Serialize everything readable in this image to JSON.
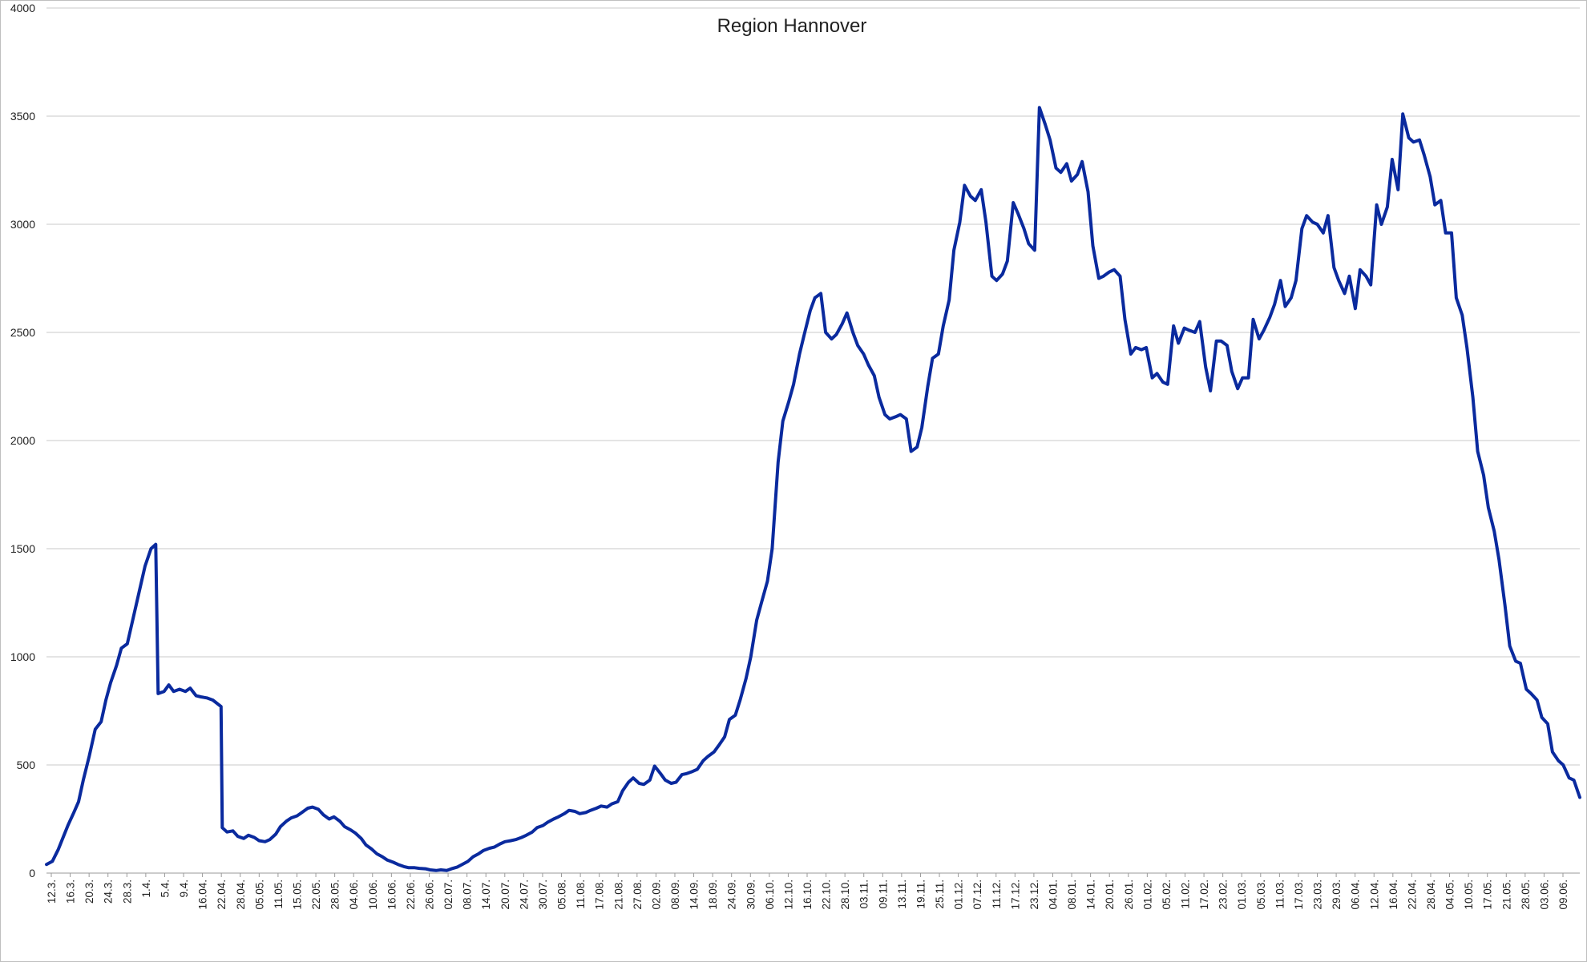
{
  "chart_data": {
    "type": "line",
    "title": "Region Hannover",
    "xlabel": "",
    "ylabel": "",
    "ylim": [
      0,
      4000
    ],
    "yticks": [
      0,
      500,
      1000,
      1500,
      2000,
      2500,
      3000,
      3500,
      4000
    ],
    "grid": true,
    "legend": "none",
    "color": "#0a2a9e",
    "categories": [
      "12.3.",
      "16.3.",
      "20.3.",
      "24.3.",
      "28.3.",
      "1.4.",
      "5.4.",
      "9.4.",
      "16.04.",
      "22.04.",
      "28.04.",
      "05.05.",
      "11.05.",
      "15.05.",
      "22.05.",
      "28.05.",
      "04.06.",
      "10.06.",
      "16.06.",
      "22.06.",
      "26.06.",
      "02.07.",
      "08.07.",
      "14.07.",
      "20.07.",
      "24.07.",
      "30.07.",
      "05.08.",
      "11.08.",
      "17.08.",
      "21.08.",
      "27.08.",
      "02.09.",
      "08.09.",
      "14.09.",
      "18.09.",
      "24.09.",
      "30.09.",
      "06.10.",
      "12.10.",
      "16.10.",
      "22.10.",
      "28.10.",
      "03.11.",
      "09.11.",
      "13.11.",
      "19.11.",
      "25.11.",
      "01.12.",
      "07.12.",
      "11.12.",
      "17.12.",
      "23.12.",
      "04.01.",
      "08.01.",
      "14.01.",
      "20.01.",
      "26.01.",
      "01.02.",
      "05.02.",
      "11.02.",
      "17.02.",
      "23.02.",
      "01.03.",
      "05.03.",
      "11.03.",
      "17.03.",
      "23.03.",
      "29.03.",
      "06.04.",
      "12.04.",
      "16.04.",
      "22.04.",
      "28.04.",
      "04.05.",
      "10.05.",
      "17.05.",
      "21.05.",
      "28.05.",
      "03.06.",
      "09.06."
    ],
    "series": [
      {
        "values": [
          [
            0,
            40
          ],
          [
            5,
            55
          ],
          [
            10,
            110
          ],
          [
            14,
            165
          ],
          [
            18,
            220
          ],
          [
            23,
            280
          ],
          [
            27,
            330
          ],
          [
            31,
            430
          ],
          [
            36,
            540
          ],
          [
            41,
            665
          ],
          [
            46,
            700
          ],
          [
            50,
            800
          ],
          [
            54,
            880
          ],
          [
            59,
            960
          ],
          [
            63,
            1040
          ],
          [
            68,
            1060
          ],
          [
            73,
            1180
          ],
          [
            78,
            1300
          ],
          [
            83,
            1420
          ],
          [
            88,
            1500
          ],
          [
            92,
            1520
          ],
          [
            94,
            830
          ],
          [
            99,
            840
          ],
          [
            103,
            870
          ],
          [
            107,
            840
          ],
          [
            112,
            850
          ],
          [
            117,
            840
          ],
          [
            121,
            855
          ],
          [
            126,
            820
          ],
          [
            130,
            815
          ],
          [
            135,
            810
          ],
          [
            140,
            800
          ],
          [
            147,
            770
          ],
          [
            148,
            210
          ],
          [
            152,
            190
          ],
          [
            157,
            195
          ],
          [
            161,
            170
          ],
          [
            166,
            160
          ],
          [
            170,
            175
          ],
          [
            175,
            165
          ],
          [
            179,
            150
          ],
          [
            184,
            145
          ],
          [
            188,
            155
          ],
          [
            193,
            180
          ],
          [
            197,
            215
          ],
          [
            202,
            240
          ],
          [
            206,
            255
          ],
          [
            211,
            265
          ],
          [
            215,
            280
          ],
          [
            220,
            300
          ],
          [
            224,
            305
          ],
          [
            229,
            295
          ],
          [
            233,
            270
          ],
          [
            238,
            250
          ],
          [
            242,
            260
          ],
          [
            247,
            240
          ],
          [
            251,
            215
          ],
          [
            256,
            200
          ],
          [
            260,
            185
          ],
          [
            265,
            160
          ],
          [
            269,
            130
          ],
          [
            274,
            110
          ],
          [
            278,
            90
          ],
          [
            283,
            75
          ],
          [
            287,
            60
          ],
          [
            292,
            50
          ],
          [
            296,
            40
          ],
          [
            301,
            30
          ],
          [
            305,
            25
          ],
          [
            310,
            25
          ],
          [
            314,
            22
          ],
          [
            319,
            20
          ],
          [
            323,
            15
          ],
          [
            328,
            12
          ],
          [
            332,
            15
          ],
          [
            337,
            12
          ],
          [
            341,
            20
          ],
          [
            346,
            28
          ],
          [
            350,
            40
          ],
          [
            355,
            55
          ],
          [
            359,
            75
          ],
          [
            364,
            90
          ],
          [
            368,
            105
          ],
          [
            373,
            115
          ],
          [
            377,
            120
          ],
          [
            382,
            135
          ],
          [
            386,
            145
          ],
          [
            391,
            150
          ],
          [
            395,
            155
          ],
          [
            400,
            165
          ],
          [
            404,
            175
          ],
          [
            409,
            190
          ],
          [
            413,
            210
          ],
          [
            418,
            220
          ],
          [
            422,
            235
          ],
          [
            427,
            250
          ],
          [
            431,
            260
          ],
          [
            436,
            275
          ],
          [
            440,
            290
          ],
          [
            445,
            285
          ],
          [
            449,
            275
          ],
          [
            454,
            280
          ],
          [
            458,
            290
          ],
          [
            463,
            300
          ],
          [
            467,
            310
          ],
          [
            472,
            305
          ],
          [
            476,
            320
          ],
          [
            481,
            330
          ],
          [
            485,
            380
          ],
          [
            490,
            420
          ],
          [
            494,
            440
          ],
          [
            499,
            415
          ],
          [
            503,
            410
          ],
          [
            508,
            430
          ],
          [
            512,
            495
          ],
          [
            517,
            460
          ],
          [
            521,
            430
          ],
          [
            526,
            415
          ],
          [
            530,
            420
          ],
          [
            535,
            455
          ],
          [
            539,
            460
          ],
          [
            544,
            470
          ],
          [
            548,
            480
          ],
          [
            553,
            520
          ],
          [
            557,
            540
          ],
          [
            562,
            560
          ],
          [
            566,
            590
          ],
          [
            571,
            630
          ],
          [
            575,
            710
          ],
          [
            580,
            730
          ],
          [
            584,
            800
          ],
          [
            589,
            900
          ],
          [
            593,
            1000
          ],
          [
            598,
            1170
          ],
          [
            602,
            1250
          ],
          [
            607,
            1350
          ],
          [
            611,
            1500
          ],
          [
            616,
            1900
          ],
          [
            620,
            2090
          ],
          [
            625,
            2180
          ],
          [
            629,
            2260
          ],
          [
            634,
            2400
          ],
          [
            638,
            2490
          ],
          [
            643,
            2600
          ],
          [
            647,
            2660
          ],
          [
            652,
            2680
          ],
          [
            656,
            2500
          ],
          [
            661,
            2470
          ],
          [
            665,
            2490
          ],
          [
            670,
            2540
          ],
          [
            674,
            2590
          ],
          [
            679,
            2500
          ],
          [
            683,
            2440
          ],
          [
            688,
            2400
          ],
          [
            692,
            2350
          ],
          [
            697,
            2300
          ],
          [
            701,
            2200
          ],
          [
            706,
            2120
          ],
          [
            710,
            2100
          ],
          [
            715,
            2110
          ],
          [
            719,
            2120
          ],
          [
            724,
            2100
          ],
          [
            728,
            1950
          ],
          [
            733,
            1970
          ],
          [
            737,
            2060
          ],
          [
            742,
            2250
          ],
          [
            746,
            2380
          ],
          [
            751,
            2400
          ],
          [
            755,
            2530
          ],
          [
            760,
            2650
          ],
          [
            764,
            2880
          ],
          [
            769,
            3010
          ],
          [
            773,
            3180
          ],
          [
            778,
            3130
          ],
          [
            782,
            3110
          ],
          [
            787,
            3160
          ],
          [
            791,
            3010
          ],
          [
            796,
            2760
          ],
          [
            800,
            2740
          ],
          [
            805,
            2770
          ],
          [
            809,
            2830
          ],
          [
            814,
            3100
          ],
          [
            818,
            3050
          ],
          [
            823,
            2980
          ],
          [
            827,
            2910
          ],
          [
            832,
            2880
          ],
          [
            836,
            3540
          ],
          [
            841,
            3460
          ],
          [
            845,
            3390
          ],
          [
            850,
            3260
          ],
          [
            854,
            3240
          ],
          [
            859,
            3280
          ],
          [
            863,
            3200
          ],
          [
            868,
            3230
          ],
          [
            872,
            3290
          ],
          [
            877,
            3150
          ],
          [
            881,
            2900
          ],
          [
            886,
            2750
          ],
          [
            890,
            2760
          ],
          [
            895,
            2780
          ],
          [
            899,
            2790
          ],
          [
            904,
            2760
          ],
          [
            908,
            2560
          ],
          [
            913,
            2400
          ],
          [
            917,
            2430
          ],
          [
            922,
            2420
          ],
          [
            926,
            2430
          ],
          [
            931,
            2290
          ],
          [
            935,
            2310
          ],
          [
            940,
            2270
          ],
          [
            944,
            2260
          ],
          [
            949,
            2530
          ],
          [
            953,
            2450
          ],
          [
            958,
            2520
          ],
          [
            962,
            2510
          ],
          [
            967,
            2500
          ],
          [
            971,
            2550
          ],
          [
            976,
            2340
          ],
          [
            980,
            2230
          ],
          [
            985,
            2460
          ],
          [
            989,
            2460
          ],
          [
            994,
            2440
          ],
          [
            998,
            2320
          ],
          [
            1003,
            2240
          ],
          [
            1007,
            2290
          ],
          [
            1012,
            2290
          ],
          [
            1016,
            2560
          ],
          [
            1021,
            2470
          ],
          [
            1025,
            2510
          ],
          [
            1030,
            2570
          ],
          [
            1034,
            2630
          ],
          [
            1039,
            2740
          ],
          [
            1043,
            2620
          ],
          [
            1048,
            2660
          ],
          [
            1052,
            2740
          ],
          [
            1057,
            2980
          ],
          [
            1061,
            3040
          ],
          [
            1066,
            3010
          ],
          [
            1070,
            3000
          ],
          [
            1075,
            2960
          ],
          [
            1079,
            3040
          ],
          [
            1084,
            2800
          ],
          [
            1088,
            2740
          ],
          [
            1093,
            2680
          ],
          [
            1097,
            2760
          ],
          [
            1102,
            2610
          ],
          [
            1106,
            2790
          ],
          [
            1111,
            2760
          ],
          [
            1115,
            2720
          ],
          [
            1120,
            3090
          ],
          [
            1124,
            3000
          ],
          [
            1129,
            3080
          ],
          [
            1133,
            3300
          ],
          [
            1138,
            3160
          ],
          [
            1142,
            3510
          ],
          [
            1147,
            3400
          ],
          [
            1151,
            3380
          ],
          [
            1156,
            3390
          ],
          [
            1160,
            3320
          ],
          [
            1165,
            3220
          ],
          [
            1169,
            3090
          ],
          [
            1174,
            3110
          ],
          [
            1178,
            2960
          ],
          [
            1183,
            2960
          ],
          [
            1187,
            2660
          ],
          [
            1192,
            2580
          ],
          [
            1196,
            2430
          ],
          [
            1201,
            2200
          ],
          [
            1205,
            1950
          ],
          [
            1210,
            1840
          ],
          [
            1214,
            1690
          ],
          [
            1219,
            1580
          ],
          [
            1223,
            1450
          ],
          [
            1228,
            1240
          ],
          [
            1232,
            1050
          ],
          [
            1237,
            980
          ],
          [
            1241,
            970
          ],
          [
            1246,
            850
          ],
          [
            1250,
            830
          ],
          [
            1255,
            800
          ],
          [
            1259,
            720
          ],
          [
            1264,
            690
          ],
          [
            1268,
            560
          ],
          [
            1273,
            520
          ],
          [
            1277,
            500
          ],
          [
            1282,
            440
          ],
          [
            1286,
            430
          ],
          [
            1291,
            350
          ]
        ]
      }
    ]
  }
}
